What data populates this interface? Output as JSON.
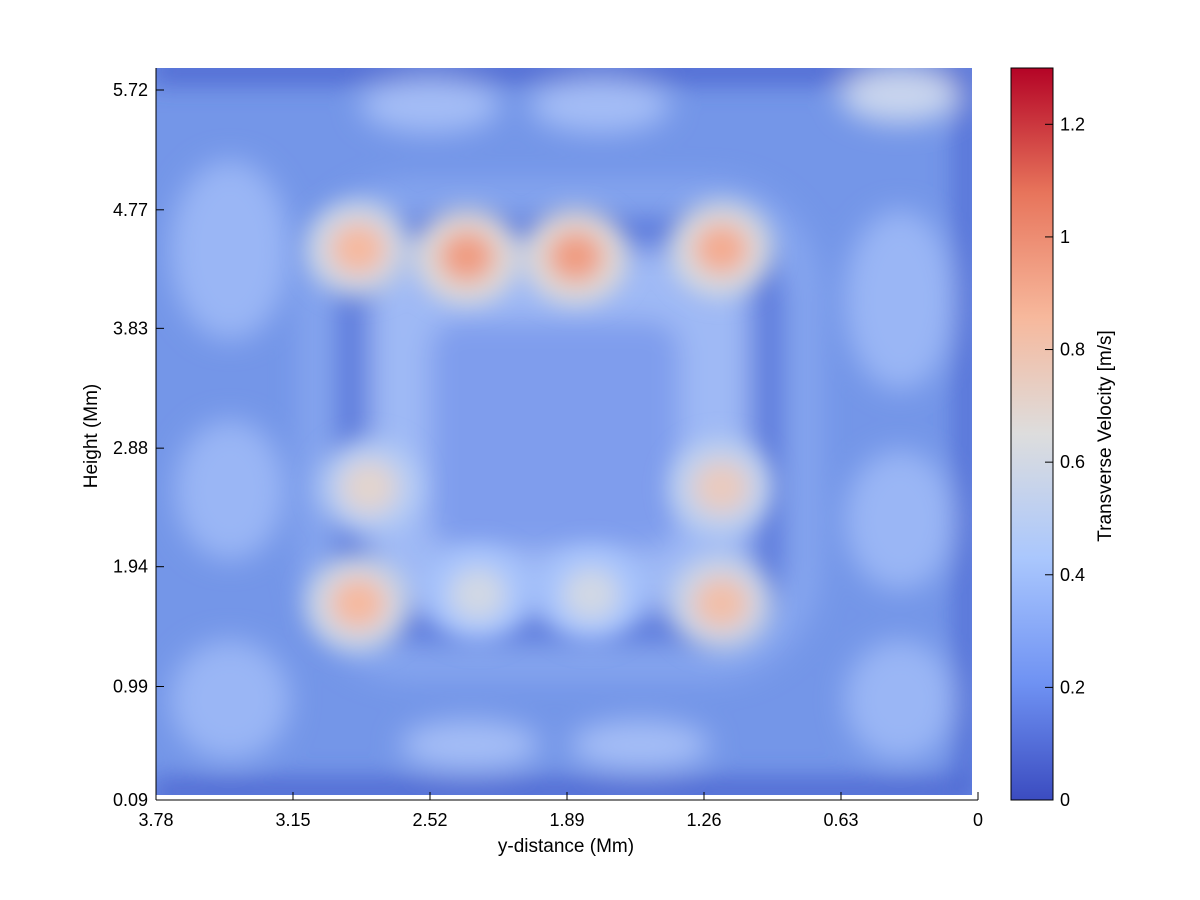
{
  "chart_data": {
    "type": "heatmap",
    "title": "",
    "xlabel": "y-distance (Mm)",
    "ylabel": "Height (Mm)",
    "x_ticks": [
      "3.78",
      "3.15",
      "2.52",
      "1.89",
      "1.26",
      "0.63",
      "0"
    ],
    "y_ticks": [
      "0.09",
      "0.99",
      "1.94",
      "2.88",
      "3.83",
      "4.77",
      "5.72"
    ],
    "xlim": [
      3.78,
      0
    ],
    "ylim": [
      0.09,
      5.72
    ],
    "x_reversed": true,
    "colorbar": {
      "label": "Transverse Velocity [m/s]",
      "ticks": [
        "0",
        "0.2",
        "0.4",
        "0.6",
        "0.8",
        "1",
        "1.2"
      ],
      "range": [
        0,
        1.3
      ],
      "colormap": "coolwarm",
      "colors": [
        "#3b4cc0",
        "#6f92f3",
        "#aac7fd",
        "#dddddd",
        "#f7b89c",
        "#e7745b",
        "#b40426"
      ]
    },
    "hotspots": [
      {
        "y_mm": 2.85,
        "height_mm": 4.46,
        "value": 0.85
      },
      {
        "y_mm": 2.35,
        "height_mm": 4.4,
        "value": 0.95
      },
      {
        "y_mm": 1.85,
        "height_mm": 4.4,
        "value": 0.95
      },
      {
        "y_mm": 1.18,
        "height_mm": 4.46,
        "value": 0.9
      },
      {
        "y_mm": 2.8,
        "height_mm": 2.57,
        "value": 0.7
      },
      {
        "y_mm": 1.18,
        "height_mm": 2.57,
        "value": 0.75
      },
      {
        "y_mm": 2.85,
        "height_mm": 1.65,
        "value": 0.85
      },
      {
        "y_mm": 1.18,
        "height_mm": 1.65,
        "value": 0.82
      },
      {
        "y_mm": 2.3,
        "height_mm": 1.72,
        "value": 0.6
      },
      {
        "y_mm": 1.78,
        "height_mm": 1.72,
        "value": 0.6
      }
    ],
    "background_value": 0.25,
    "edge_value": 0.05
  }
}
